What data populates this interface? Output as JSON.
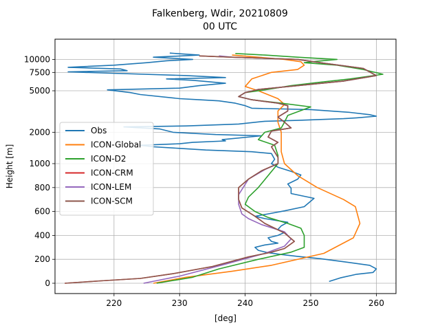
{
  "chart_data": {
    "type": "line",
    "title": "Falkenberg, Wdir, 20210809",
    "subtitle": "00 UTC",
    "xlabel": "[deg]",
    "ylabel": "Height [m]",
    "xlim": [
      211,
      263
    ],
    "x_ticks": [
      220,
      230,
      240,
      250,
      260
    ],
    "y_ticks": [
      0,
      200,
      400,
      600,
      800,
      1000,
      2000,
      5000,
      7500,
      10000
    ],
    "y_scale": "linear to 1000 m, logarithmic above",
    "grid": true,
    "legend": "center-left",
    "series": [
      {
        "name": "Obs",
        "color": "#1f77b4",
        "points": [
          [
            252.8,
            15
          ],
          [
            254.5,
            45
          ],
          [
            257,
            75
          ],
          [
            259.5,
            90
          ],
          [
            260,
            120
          ],
          [
            259,
            150
          ],
          [
            255,
            180
          ],
          [
            251.5,
            205
          ],
          [
            248,
            225
          ],
          [
            245.5,
            240
          ],
          [
            243.5,
            255
          ],
          [
            242,
            275
          ],
          [
            241.5,
            300
          ],
          [
            243,
            320
          ],
          [
            245,
            335
          ],
          [
            244,
            350
          ],
          [
            243.5,
            380
          ],
          [
            245,
            400
          ],
          [
            246,
            425
          ],
          [
            245,
            450
          ],
          [
            245.5,
            480
          ],
          [
            246.5,
            510
          ],
          [
            243,
            540
          ],
          [
            241.5,
            560
          ],
          [
            243.5,
            580
          ],
          [
            246,
            605
          ],
          [
            249,
            640
          ],
          [
            250.5,
            710
          ],
          [
            247,
            750
          ],
          [
            247,
            795
          ],
          [
            246.5,
            830
          ],
          [
            248,
            870
          ],
          [
            248.5,
            905
          ],
          [
            247,
            935
          ],
          [
            245,
            970
          ],
          [
            244,
            1000
          ],
          [
            244.5,
            1100
          ],
          [
            244,
            1250
          ],
          [
            241,
            1300
          ],
          [
            234,
            1350
          ],
          [
            230,
            1400
          ],
          [
            226,
            1450
          ],
          [
            224,
            1500
          ],
          [
            230,
            1550
          ],
          [
            232,
            1600
          ],
          [
            237,
            1650
          ],
          [
            236.5,
            1700
          ],
          [
            242.5,
            1850
          ],
          [
            235.5,
            1900
          ],
          [
            229,
            2000
          ],
          [
            227,
            2150
          ],
          [
            221.5,
            2250
          ],
          [
            231,
            2300
          ],
          [
            239,
            2400
          ],
          [
            243,
            2550
          ],
          [
            248,
            2600
          ],
          [
            255,
            2700
          ],
          [
            257,
            2750
          ],
          [
            260,
            2850
          ],
          [
            259,
            2950
          ],
          [
            256,
            3100
          ],
          [
            250,
            3300
          ],
          [
            241,
            3400
          ],
          [
            240,
            3600
          ],
          [
            238.5,
            3800
          ],
          [
            236,
            4000
          ],
          [
            233,
            4100
          ],
          [
            230,
            4200
          ],
          [
            224,
            4600
          ],
          [
            222.5,
            4800
          ],
          [
            219,
            5100
          ],
          [
            230,
            5300
          ],
          [
            233,
            5600
          ],
          [
            237,
            5900
          ],
          [
            232,
            6300
          ],
          [
            228,
            6500
          ],
          [
            237,
            6700
          ],
          [
            231,
            7000
          ],
          [
            213,
            7600
          ],
          [
            222,
            7800
          ],
          [
            221,
            8100
          ],
          [
            213,
            8400
          ],
          [
            220,
            8800
          ],
          [
            225,
            9300
          ],
          [
            228,
            9700
          ],
          [
            232,
            10000
          ],
          [
            226,
            10500
          ],
          [
            233,
            11000
          ],
          [
            228.5,
            11500
          ]
        ]
      },
      {
        "name": "ICON-Global",
        "color": "#ff7f0e",
        "points": [
          [
            226,
            0
          ],
          [
            231,
            50
          ],
          [
            238,
            100
          ],
          [
            244,
            150
          ],
          [
            252,
            250
          ],
          [
            256.5,
            380
          ],
          [
            257.5,
            500
          ],
          [
            256.8,
            640
          ],
          [
            255,
            700
          ],
          [
            251,
            800
          ],
          [
            248,
            900
          ],
          [
            246,
            1000
          ],
          [
            245.5,
            1300
          ],
          [
            245.5,
            1700
          ],
          [
            245.5,
            2000
          ],
          [
            245,
            2500
          ],
          [
            245,
            3200
          ],
          [
            246,
            3700
          ],
          [
            245,
            4200
          ],
          [
            242,
            5000
          ],
          [
            240,
            5500
          ],
          [
            241,
            6500
          ],
          [
            244,
            7500
          ],
          [
            248,
            8000
          ],
          [
            249,
            8800
          ],
          [
            248.5,
            9500
          ],
          [
            246,
            10000
          ],
          [
            242,
            10500
          ],
          [
            238,
            11000
          ]
        ]
      },
      {
        "name": "ICON-D2",
        "color": "#2ca02c",
        "points": [
          [
            226.5,
            0
          ],
          [
            232,
            50
          ],
          [
            236,
            120
          ],
          [
            242,
            200
          ],
          [
            247,
            260
          ],
          [
            249,
            300
          ],
          [
            249,
            400
          ],
          [
            248.5,
            460
          ],
          [
            246.5,
            500
          ],
          [
            243.5,
            550
          ],
          [
            241.5,
            600
          ],
          [
            240,
            660
          ],
          [
            240.5,
            720
          ],
          [
            242,
            800
          ],
          [
            243.5,
            900
          ],
          [
            245,
            1000
          ],
          [
            245,
            1200
          ],
          [
            244.5,
            1500
          ],
          [
            242,
            1700
          ],
          [
            243,
            2000
          ],
          [
            245.5,
            2200
          ],
          [
            246,
            2500
          ],
          [
            246.5,
            2900
          ],
          [
            250,
            3500
          ],
          [
            245.5,
            3800
          ],
          [
            241,
            4100
          ],
          [
            239,
            4400
          ],
          [
            240,
            4800
          ],
          [
            243,
            5100
          ],
          [
            247,
            5600
          ],
          [
            251,
            6000
          ],
          [
            256,
            6500
          ],
          [
            261,
            7200
          ],
          [
            258,
            8000
          ],
          [
            254,
            8800
          ],
          [
            249,
            9300
          ],
          [
            251,
            9600
          ],
          [
            254,
            10000
          ],
          [
            248,
            10500
          ],
          [
            243,
            11000
          ],
          [
            238.5,
            11400
          ]
        ]
      },
      {
        "name": "ICON-CRM",
        "color": "#d62728",
        "points": [
          [
            212.5,
            0
          ],
          [
            218,
            20
          ],
          [
            224,
            40
          ],
          [
            229,
            80
          ],
          [
            235,
            140
          ],
          [
            240.5,
            220
          ],
          [
            244,
            260
          ],
          [
            246,
            290
          ],
          [
            247.5,
            350
          ],
          [
            246,
            420
          ],
          [
            243,
            500
          ],
          [
            241.5,
            560
          ],
          [
            239.5,
            630
          ],
          [
            239,
            700
          ],
          [
            239,
            800
          ],
          [
            240.5,
            870
          ],
          [
            242.5,
            940
          ],
          [
            245,
            1000
          ],
          [
            245,
            1150
          ],
          [
            244,
            1450
          ],
          [
            245,
            1600
          ],
          [
            243.5,
            1800
          ],
          [
            244,
            2050
          ],
          [
            247,
            2200
          ],
          [
            246,
            2500
          ],
          [
            245,
            2800
          ],
          [
            246.5,
            3200
          ],
          [
            246.5,
            3600
          ],
          [
            245,
            3800
          ],
          [
            241,
            4100
          ],
          [
            239,
            4400
          ],
          [
            240,
            4800
          ],
          [
            242,
            5150
          ],
          [
            248,
            5600
          ],
          [
            255,
            6200
          ],
          [
            260,
            7000
          ],
          [
            258,
            8200
          ],
          [
            252,
            9200
          ],
          [
            248,
            10000
          ],
          [
            238,
            10500
          ],
          [
            233,
            10800
          ]
        ]
      },
      {
        "name": "ICON-LEM",
        "color": "#9467bd",
        "points": [
          [
            224.5,
            0
          ],
          [
            230,
            60
          ],
          [
            237,
            160
          ],
          [
            243,
            250
          ],
          [
            246,
            310
          ],
          [
            247,
            370
          ],
          [
            246,
            430
          ],
          [
            242.5,
            490
          ],
          [
            240.5,
            540
          ],
          [
            239.5,
            580
          ],
          [
            239,
            660
          ],
          [
            239,
            740
          ],
          [
            240.5,
            870
          ],
          [
            243,
            950
          ],
          [
            245,
            1000
          ],
          [
            245,
            1150
          ],
          [
            244,
            1450
          ],
          [
            245,
            1600
          ],
          [
            243.5,
            1800
          ],
          [
            244,
            2050
          ],
          [
            247,
            2200
          ],
          [
            246,
            2500
          ],
          [
            245,
            2800
          ],
          [
            246.5,
            3200
          ],
          [
            246.5,
            3600
          ],
          [
            245,
            3800
          ],
          [
            241,
            4100
          ],
          [
            239,
            4400
          ],
          [
            240,
            4800
          ],
          [
            242,
            5150
          ],
          [
            248,
            5600
          ],
          [
            255,
            6200
          ],
          [
            260,
            7000
          ],
          [
            258,
            8200
          ],
          [
            252,
            9200
          ],
          [
            248,
            10000
          ],
          [
            238,
            10500
          ],
          [
            236,
            10800
          ]
        ]
      },
      {
        "name": "ICON-SCM",
        "color": "#8c564b",
        "points": [
          [
            212.5,
            0
          ],
          [
            218,
            20
          ],
          [
            224,
            40
          ],
          [
            229,
            80
          ],
          [
            235,
            140
          ],
          [
            240.5,
            220
          ],
          [
            244,
            260
          ],
          [
            246,
            290
          ],
          [
            247.5,
            350
          ],
          [
            246,
            420
          ],
          [
            243,
            500
          ],
          [
            241.5,
            560
          ],
          [
            239.5,
            630
          ],
          [
            239,
            700
          ],
          [
            239,
            800
          ],
          [
            240.5,
            870
          ],
          [
            242.5,
            940
          ],
          [
            245,
            1000
          ],
          [
            245,
            1150
          ],
          [
            244,
            1450
          ],
          [
            245,
            1600
          ],
          [
            243.5,
            1800
          ],
          [
            244,
            2050
          ],
          [
            247,
            2200
          ],
          [
            246,
            2500
          ],
          [
            245,
            2800
          ],
          [
            246.5,
            3200
          ],
          [
            246.5,
            3600
          ],
          [
            245,
            3800
          ],
          [
            241,
            4100
          ],
          [
            239,
            4400
          ],
          [
            240,
            4800
          ],
          [
            242,
            5150
          ],
          [
            248,
            5600
          ],
          [
            255,
            6200
          ],
          [
            260,
            7000
          ],
          [
            258,
            8200
          ],
          [
            252,
            9200
          ],
          [
            248,
            10000
          ],
          [
            238,
            10500
          ],
          [
            233,
            10800
          ]
        ]
      }
    ]
  }
}
